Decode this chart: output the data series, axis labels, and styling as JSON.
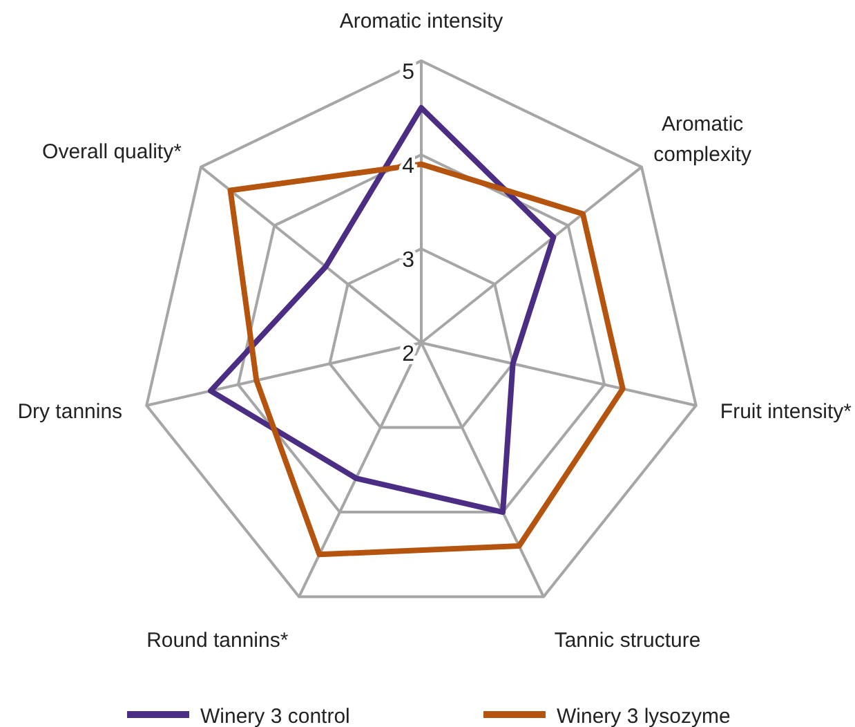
{
  "chart_data": {
    "type": "radar",
    "categories": [
      "Aromatic intensity",
      "Aromatic complexity",
      "Fruit intensity*",
      "Tannic structure",
      "Round tannins*",
      "Dry tannins",
      "Overall quality*"
    ],
    "ylim": [
      2,
      5
    ],
    "yticks": [
      2,
      3,
      4,
      5
    ],
    "legend": "bottom",
    "grid": true,
    "series": [
      {
        "name": "Winery 3 control",
        "color": "#4b2e83",
        "values": [
          4.5,
          3.8,
          3.0,
          4.0,
          3.6,
          4.3,
          3.3
        ]
      },
      {
        "name": "Winery 3 lysozyme",
        "color": "#b5540e",
        "values": [
          3.9,
          4.2,
          4.2,
          4.4,
          4.5,
          3.8,
          4.6
        ]
      }
    ]
  }
}
